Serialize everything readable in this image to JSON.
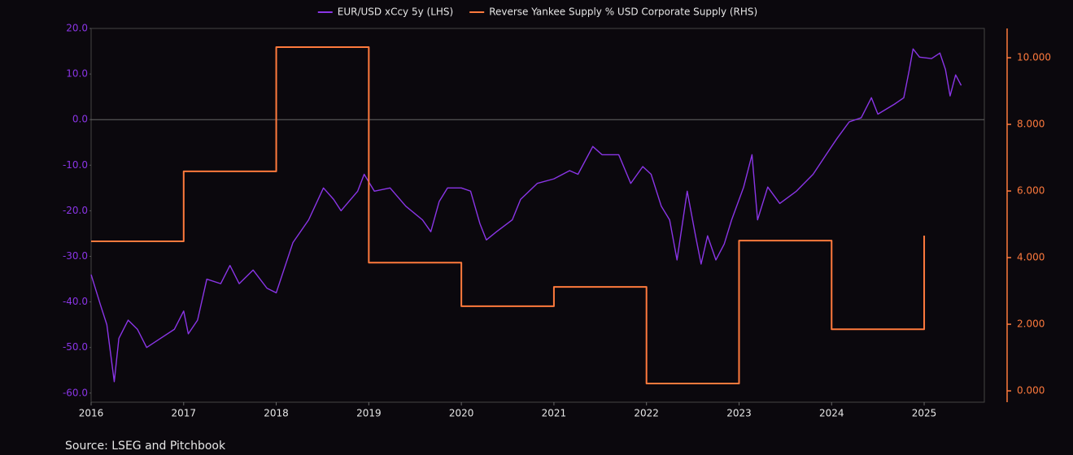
{
  "chart_data": {
    "type": "line",
    "source": "Source: LSEG and Pitchbook",
    "xlim": [
      2016,
      2025.65
    ],
    "xticks": [
      2016,
      2017,
      2018,
      2019,
      2020,
      2021,
      2022,
      2023,
      2024,
      2025
    ],
    "ylim": [
      -62,
      20
    ],
    "yticks": [
      {
        "value": 20,
        "label": "20.0"
      },
      {
        "value": 10,
        "label": "10.0"
      },
      {
        "value": 0,
        "label": "0.0"
      },
      {
        "value": -10,
        "label": "-10.0"
      },
      {
        "value": -20,
        "label": "-20.0"
      },
      {
        "value": -30,
        "label": "-30.0"
      },
      {
        "value": -40,
        "label": "-40.0"
      },
      {
        "value": -50,
        "label": "-50.0"
      },
      {
        "value": -60,
        "label": "-60.0"
      }
    ],
    "y2lim": [
      -0.34,
      10.88
    ],
    "y2ticks": [
      {
        "value": 0,
        "label": "0.000"
      },
      {
        "value": 2,
        "label": "2.000"
      },
      {
        "value": 4,
        "label": "4.000"
      },
      {
        "value": 6,
        "label": "6.000"
      },
      {
        "value": 8,
        "label": "8.000"
      },
      {
        "value": 10,
        "label": "10.000"
      }
    ],
    "zero_line": true,
    "legend": "top",
    "series": [
      {
        "name": "EUR/USD xCcy 5y (LHS)",
        "color": "#8a35e6",
        "axis": "y",
        "x": [
          2016.0,
          2016.1,
          2016.17,
          2016.25,
          2016.3,
          2016.4,
          2016.5,
          2016.6,
          2016.75,
          2016.9,
          2017.0,
          2017.05,
          2017.15,
          2017.25,
          2017.4,
          2017.5,
          2017.6,
          2017.75,
          2017.9,
          2018.0,
          2018.18,
          2018.35,
          2018.51,
          2018.62,
          2018.7,
          2018.88,
          2018.95,
          2019.06,
          2019.23,
          2019.4,
          2019.58,
          2019.67,
          2019.76,
          2019.85,
          2020.0,
          2020.1,
          2020.2,
          2020.27,
          2020.38,
          2020.55,
          2020.64,
          2020.82,
          2021.0,
          2021.17,
          2021.26,
          2021.42,
          2021.52,
          2021.7,
          2021.83,
          2021.96,
          2022.05,
          2022.16,
          2022.25,
          2022.33,
          2022.44,
          2022.53,
          2022.59,
          2022.66,
          2022.75,
          2022.84,
          2022.92,
          2023.05,
          2023.14,
          2023.2,
          2023.31,
          2023.44,
          2023.62,
          2023.8,
          2023.97,
          2024.06,
          2024.19,
          2024.32,
          2024.43,
          2024.5,
          2024.68,
          2024.78,
          2024.84,
          2024.88,
          2024.95,
          2025.08,
          2025.17,
          2025.23,
          2025.28,
          2025.34,
          2025.4
        ],
        "values": [
          -34,
          -40.6,
          -45,
          -57.5,
          -48,
          -44,
          -46,
          -50,
          -48,
          -46,
          -42,
          -47,
          -44,
          -35,
          -36,
          -32,
          -36,
          -33,
          -37,
          -38,
          -27,
          -22,
          -15,
          -17.5,
          -20,
          -15.7,
          -12,
          -15.7,
          -15,
          -19,
          -22,
          -24.6,
          -18,
          -15,
          -15,
          -15.7,
          -22.8,
          -26.4,
          -24.6,
          -22,
          -17.5,
          -14,
          -13,
          -11.2,
          -12,
          -5.9,
          -7.7,
          -7.7,
          -14,
          -10.3,
          -12,
          -19,
          -22,
          -30.8,
          -15.7,
          -25.5,
          -31.7,
          -25.5,
          -30.8,
          -27.3,
          -22,
          -14.8,
          -7.7,
          -22,
          -14.8,
          -18.4,
          -15.7,
          -12,
          -6.8,
          -4.1,
          -0.5,
          0.4,
          4.8,
          1.2,
          3.4,
          4.8,
          11,
          15.5,
          13.7,
          13.4,
          14.6,
          11,
          5.2,
          9.8,
          7.5
        ]
      },
      {
        "name": "Reverse Yankee Supply % USD Corporate Supply (RHS)",
        "color": "#ff7a3d",
        "axis": "y2",
        "step": "post",
        "x": [
          2016,
          2017,
          2018,
          2019,
          2020,
          2021,
          2022,
          2023,
          2024,
          2025
        ],
        "values": [
          4.49,
          6.59,
          10.32,
          3.85,
          2.54,
          3.12,
          0.22,
          4.51,
          1.85,
          4.66
        ]
      }
    ]
  }
}
